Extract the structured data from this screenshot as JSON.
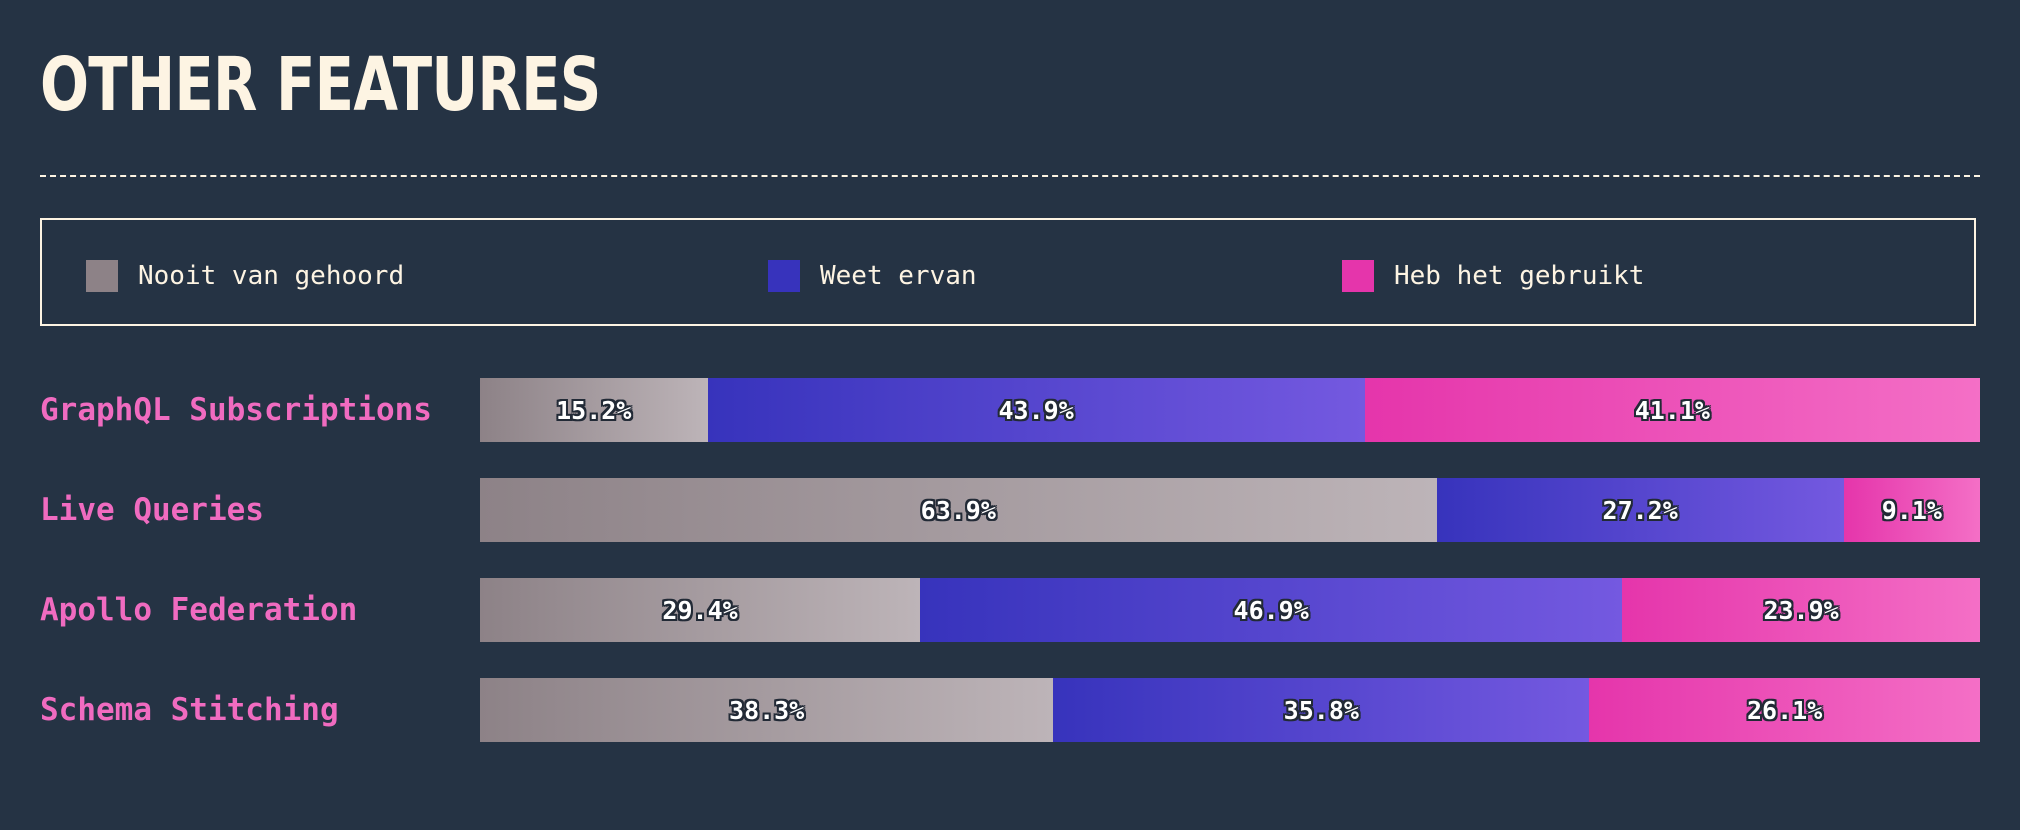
{
  "header": {
    "title": "OTHER FEATURES"
  },
  "legend": [
    {
      "label": "Nooit van gehoord",
      "color": "#8d8287"
    },
    {
      "label": "Weet ervan",
      "color": "#3733bc"
    },
    {
      "label": "Heb het gebruikt",
      "color": "#e535ab"
    }
  ],
  "gradients": {
    "never": [
      "#8d8287",
      "#bdb4b8"
    ],
    "know": [
      "#3733bc",
      "#7459e0"
    ],
    "used": [
      "#e535ab",
      "#f46fc6"
    ]
  },
  "chart_data": {
    "type": "bar",
    "stacked": true,
    "orientation": "horizontal",
    "categories": [
      "GraphQL Subscriptions",
      "Live Queries",
      "Apollo Federation",
      "Schema Stitching"
    ],
    "series": [
      {
        "name": "Nooit van gehoord",
        "key": "never",
        "values": [
          15.2,
          63.9,
          29.4,
          38.3
        ],
        "labels": [
          "15.2%",
          "63.9%",
          "29.4%",
          "38.3%"
        ]
      },
      {
        "name": "Weet ervan",
        "key": "know",
        "values": [
          43.9,
          27.2,
          46.9,
          35.8
        ],
        "labels": [
          "43.9%",
          "27.2%",
          "46.9%",
          "35.8%"
        ]
      },
      {
        "name": "Heb het gebruikt",
        "key": "used",
        "values": [
          41.1,
          9.1,
          23.9,
          26.1
        ],
        "labels": [
          "41.1%",
          "9.1%",
          "23.9%",
          "26.1%"
        ]
      }
    ],
    "xlim": [
      0,
      100
    ],
    "legend_position": "top"
  }
}
